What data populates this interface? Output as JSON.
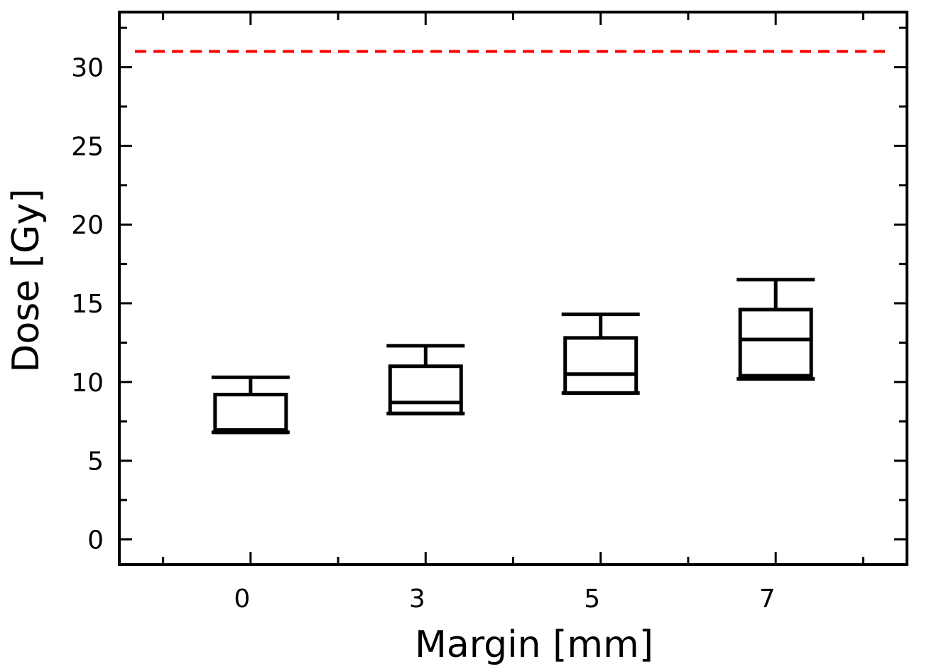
{
  "chart_data": {
    "type": "box",
    "xlabel": "Margin [mm]",
    "ylabel": "Dose [Gy]",
    "categories": [
      "0",
      "3",
      "5",
      "7"
    ],
    "ylim": [
      -1.6,
      33.5
    ],
    "yticks": [
      0,
      5,
      10,
      15,
      20,
      25,
      30
    ],
    "grid": false,
    "boxes": [
      {
        "category": "0",
        "whisker_low": 6.8,
        "q1": 6.8,
        "median": 6.95,
        "q3": 9.2,
        "whisker_high": 10.3
      },
      {
        "category": "3",
        "whisker_low": 8.0,
        "q1": 8.0,
        "median": 8.7,
        "q3": 11.0,
        "whisker_high": 12.3
      },
      {
        "category": "5",
        "whisker_low": 9.3,
        "q1": 9.3,
        "median": 10.5,
        "q3": 12.8,
        "whisker_high": 14.3
      },
      {
        "category": "7",
        "whisker_low": 10.2,
        "q1": 10.4,
        "median": 12.7,
        "q3": 14.6,
        "whisker_high": 16.5
      }
    ],
    "reference_line": {
      "y": 31,
      "color": "#ff0000",
      "style": "dashed"
    },
    "colors": {
      "boxes": "#000000",
      "reference": "#ff0000"
    }
  }
}
